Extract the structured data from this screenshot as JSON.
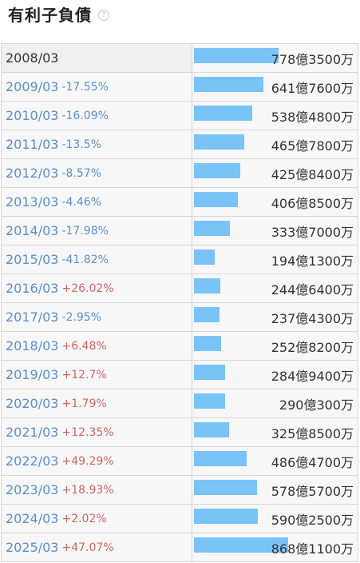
{
  "header": {
    "title": "有利子負債",
    "help_icon": "question-circle-icon"
  },
  "colors": {
    "bar": "#79c3f7",
    "negative_change": "#5b8fd0",
    "positive_change": "#d06565"
  },
  "chart_data": {
    "type": "bar",
    "title": "有利子負債",
    "unit": "円",
    "orientation": "horizontal",
    "categories": [
      "2008/03",
      "2009/03",
      "2010/03",
      "2011/03",
      "2012/03",
      "2013/03",
      "2014/03",
      "2015/03",
      "2016/03",
      "2017/03",
      "2018/03",
      "2019/03",
      "2020/03",
      "2021/03",
      "2022/03",
      "2023/03",
      "2024/03",
      "2025/03"
    ],
    "values": [
      77835000000,
      64176000000,
      53848000000,
      46578000000,
      42584000000,
      40685000000,
      33370000000,
      19413000000,
      24464000000,
      23743000000,
      25282000000,
      28494000000,
      29003000000,
      32585000000,
      48647000000,
      57857000000,
      59025000000,
      86811000000
    ],
    "rows": [
      {
        "period": "2008/03",
        "change": "",
        "value_label": "778億3500万"
      },
      {
        "period": "2009/03",
        "change": "-17.55%",
        "value_label": "641億7600万"
      },
      {
        "period": "2010/03",
        "change": "-16.09%",
        "value_label": "538億4800万"
      },
      {
        "period": "2011/03",
        "change": "-13.5%",
        "value_label": "465億7800万"
      },
      {
        "period": "2012/03",
        "change": "-8.57%",
        "value_label": "425億8400万"
      },
      {
        "period": "2013/03",
        "change": "-4.46%",
        "value_label": "406億8500万"
      },
      {
        "period": "2014/03",
        "change": "-17.98%",
        "value_label": "333億7000万"
      },
      {
        "period": "2015/03",
        "change": "-41.82%",
        "value_label": "194億1300万"
      },
      {
        "period": "2016/03",
        "change": "+26.02%",
        "value_label": "244億6400万"
      },
      {
        "period": "2017/03",
        "change": "-2.95%",
        "value_label": "237億4300万"
      },
      {
        "period": "2018/03",
        "change": "+6.48%",
        "value_label": "252億8200万"
      },
      {
        "period": "2019/03",
        "change": "+12.7%",
        "value_label": "284億9400万"
      },
      {
        "period": "2020/03",
        "change": "+1.79%",
        "value_label": "290億300万"
      },
      {
        "period": "2021/03",
        "change": "+12.35%",
        "value_label": "325億8500万"
      },
      {
        "period": "2022/03",
        "change": "+49.29%",
        "value_label": "486億4700万"
      },
      {
        "period": "2023/03",
        "change": "+18.93%",
        "value_label": "578億5700万"
      },
      {
        "period": "2024/03",
        "change": "+2.02%",
        "value_label": "590億2500万"
      },
      {
        "period": "2025/03",
        "change": "+47.07%",
        "value_label": "868億1100万"
      }
    ]
  }
}
